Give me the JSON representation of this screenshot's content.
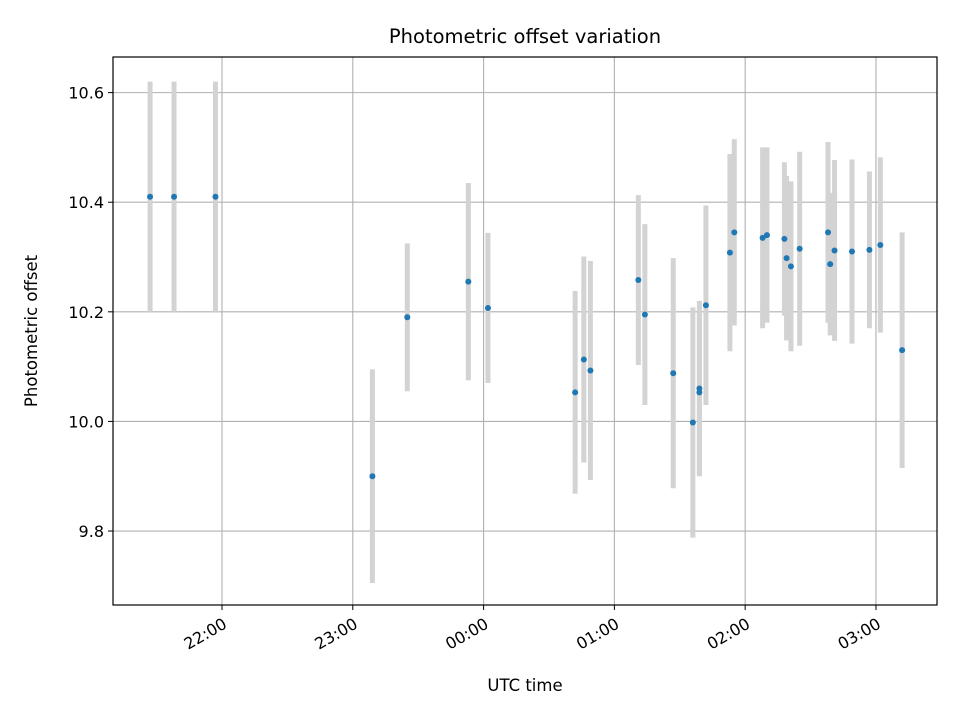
{
  "chart_data": {
    "type": "scatter",
    "title": "Photometric offset variation",
    "xlabel": "UTC time",
    "ylabel": "Photometric offset",
    "grid": true,
    "x_tick_labels": [
      "22:00",
      "23:00",
      "00:00",
      "01:00",
      "02:00",
      "03:00"
    ],
    "x_tick_minutes": [
      1320,
      1380,
      1440,
      1500,
      1560,
      1620
    ],
    "xlim_minutes": [
      1270,
      1648
    ],
    "y_ticks": [
      9.8,
      10.0,
      10.2,
      10.4,
      10.6
    ],
    "y_tick_labels": [
      "9.8",
      "10.0",
      "10.2",
      "10.4",
      "10.6"
    ],
    "ylim": [
      9.665,
      10.665
    ],
    "x_times": [
      "21:27",
      "21:38",
      "21:57",
      "23:09",
      "23:25",
      "23:53",
      "24:02",
      "24:42",
      "24:46",
      "24:49",
      "25:11",
      "25:14",
      "25:27",
      "25:36",
      "25:39",
      "25:39",
      "25:42",
      "25:53",
      "25:55",
      "26:08",
      "26:10",
      "26:18",
      "26:19",
      "26:21",
      "26:25",
      "26:38",
      "26:39",
      "26:41",
      "26:49",
      "26:57",
      "27:02",
      "27:12"
    ],
    "y_values": [
      10.41,
      10.41,
      10.41,
      9.9,
      10.19,
      10.255,
      10.207,
      10.053,
      10.113,
      10.093,
      10.258,
      10.195,
      10.088,
      9.998,
      10.053,
      10.06,
      10.212,
      10.308,
      10.345,
      10.335,
      10.34,
      10.333,
      10.298,
      10.283,
      10.315,
      10.345,
      10.287,
      10.312,
      10.31,
      10.313,
      10.322,
      10.13
    ],
    "y_err": [
      0.21,
      0.21,
      0.21,
      0.195,
      0.135,
      0.18,
      0.137,
      0.185,
      0.188,
      0.2,
      0.155,
      0.165,
      0.21,
      0.21,
      0.15,
      0.16,
      0.182,
      0.18,
      0.17,
      0.165,
      0.16,
      0.14,
      0.15,
      0.155,
      0.177,
      0.165,
      0.13,
      0.165,
      0.168,
      0.143,
      0.16,
      0.215
    ]
  }
}
